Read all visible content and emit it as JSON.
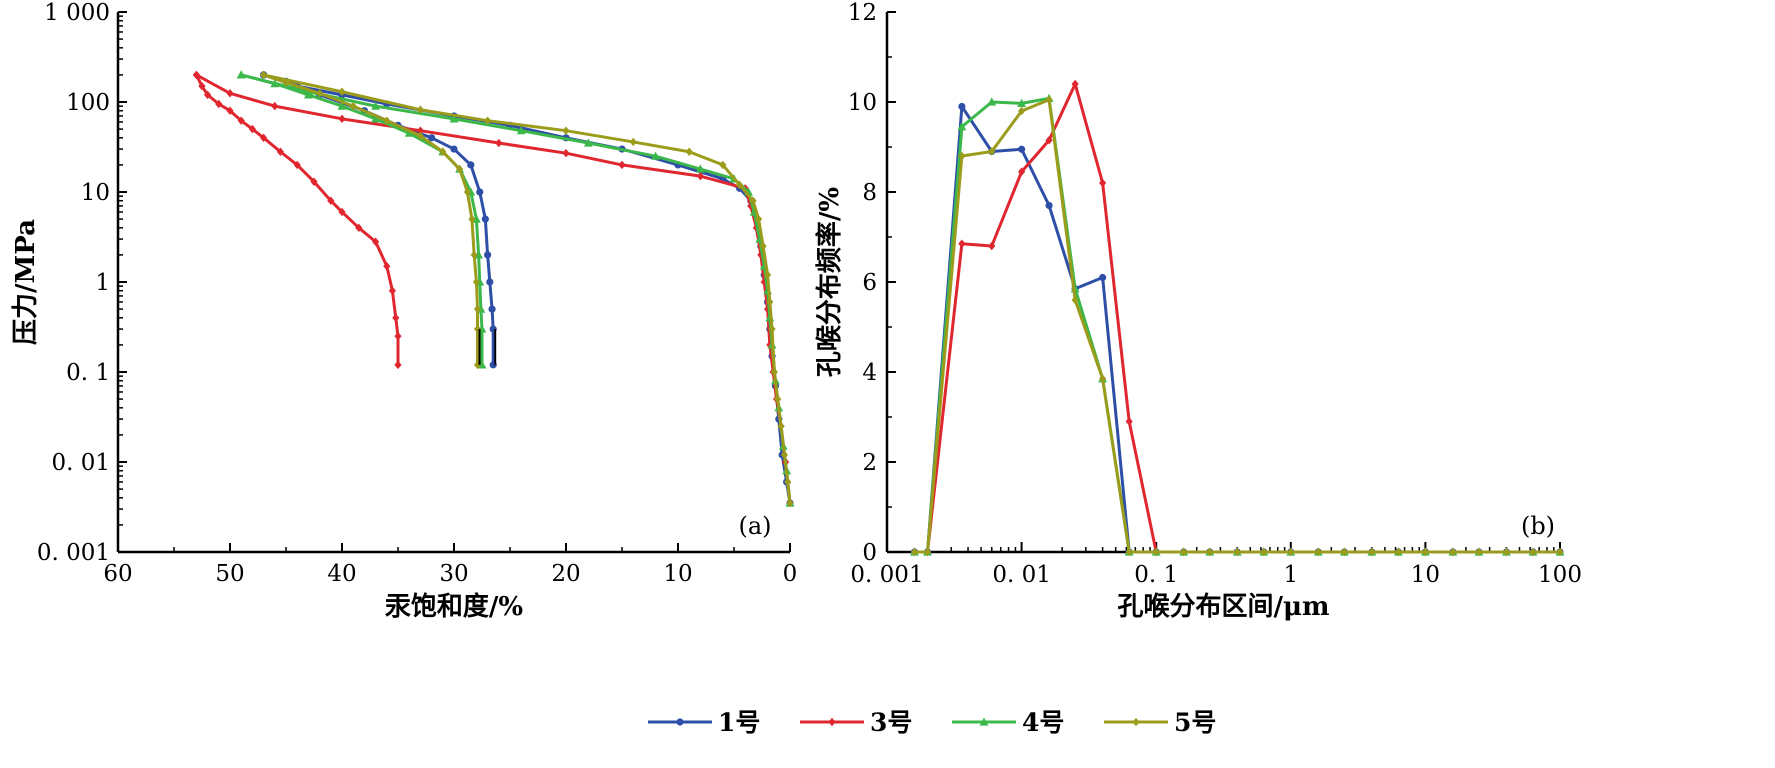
{
  "colors": {
    "1号": "#2e4fa8",
    "3号": "#e0262f",
    "4号": "#3cb84b",
    "5号": "#9c9c1c",
    "axis": "#000000"
  },
  "markers": {
    "1号": "circle",
    "3号": "diamond",
    "4号": "triangle",
    "5号": "diamond"
  },
  "legend": {
    "placement": "bottom-center",
    "items": [
      "1号",
      "3号",
      "4号",
      "5号"
    ]
  },
  "chart_data": [
    {
      "panel_label": "(a)",
      "type": "line",
      "xlabel": "汞饱和度/%",
      "ylabel": "压力/MPa",
      "xlim": [
        60,
        0
      ],
      "x_reversed": true,
      "ylim": [
        0.001,
        1000
      ],
      "y_scale": "log",
      "x_ticks": [
        60,
        50,
        40,
        30,
        20,
        10,
        0
      ],
      "x_tick_labels": [
        "60",
        "50",
        "40",
        "30",
        "20",
        "10",
        "0"
      ],
      "y_ticks": [
        0.001,
        0.01,
        0.1,
        1,
        10,
        100,
        1000
      ],
      "y_tick_labels": [
        "0. 001",
        "0. 01",
        "0. 1",
        "1",
        "10",
        "100",
        "1 000"
      ],
      "grid": false,
      "series": [
        {
          "name": "1号",
          "curve": "injection",
          "points": [
            [
              0,
              0.0035
            ],
            [
              0.3,
              0.006
            ],
            [
              0.7,
              0.012
            ],
            [
              1.0,
              0.03
            ],
            [
              1.3,
              0.07
            ],
            [
              1.6,
              0.15
            ],
            [
              1.8,
              0.3
            ],
            [
              2.0,
              0.6
            ],
            [
              2.3,
              1.2
            ],
            [
              2.6,
              2.5
            ],
            [
              3.0,
              5
            ],
            [
              3.5,
              8
            ],
            [
              4.5,
              11
            ],
            [
              6,
              14
            ],
            [
              10,
              20
            ],
            [
              15,
              30
            ],
            [
              20,
              40
            ],
            [
              25,
              55
            ],
            [
              30,
              70
            ],
            [
              36,
              95
            ],
            [
              40,
              120
            ],
            [
              44,
              150
            ],
            [
              47,
              200
            ]
          ]
        },
        {
          "name": "1号",
          "curve": "withdrawal",
          "points": [
            [
              47,
              200
            ],
            [
              45,
              170
            ],
            [
              42,
              120
            ],
            [
              38,
              80
            ],
            [
              35,
              55
            ],
            [
              32,
              40
            ],
            [
              30,
              30
            ],
            [
              28.5,
              20
            ],
            [
              27.7,
              10
            ],
            [
              27.2,
              5
            ],
            [
              27,
              2
            ],
            [
              26.8,
              1
            ],
            [
              26.6,
              0.5
            ],
            [
              26.5,
              0.3
            ],
            [
              26.5,
              0.12
            ]
          ]
        },
        {
          "name": "3号",
          "curve": "injection",
          "points": [
            [
              0,
              0.0035
            ],
            [
              0.4,
              0.01
            ],
            [
              0.8,
              0.025
            ],
            [
              1.2,
              0.05
            ],
            [
              1.5,
              0.1
            ],
            [
              1.8,
              0.2
            ],
            [
              2.0,
              0.5
            ],
            [
              2.3,
              1
            ],
            [
              2.6,
              2
            ],
            [
              3.0,
              4
            ],
            [
              3.5,
              7
            ],
            [
              4.0,
              11
            ],
            [
              8,
              15
            ],
            [
              15,
              20
            ],
            [
              20,
              27
            ],
            [
              26,
              35
            ],
            [
              33,
              48
            ],
            [
              40,
              65
            ],
            [
              46,
              90
            ],
            [
              50,
              125
            ],
            [
              53,
              200
            ]
          ]
        },
        {
          "name": "3号",
          "curve": "withdrawal",
          "points": [
            [
              53,
              200
            ],
            [
              52.5,
              150
            ],
            [
              52,
              120
            ],
            [
              51,
              95
            ],
            [
              50,
              80
            ],
            [
              49,
              62
            ],
            [
              48,
              50
            ],
            [
              47,
              40
            ],
            [
              45.5,
              28
            ],
            [
              44,
              20
            ],
            [
              42.5,
              13
            ],
            [
              41,
              8
            ],
            [
              40,
              6
            ],
            [
              38.5,
              4
            ],
            [
              37,
              2.8
            ],
            [
              36,
              1.5
            ],
            [
              35.5,
              0.8
            ],
            [
              35.2,
              0.4
            ],
            [
              35,
              0.25
            ],
            [
              35,
              0.12
            ]
          ]
        },
        {
          "name": "4号",
          "curve": "injection",
          "points": [
            [
              0,
              0.0035
            ],
            [
              0.3,
              0.008
            ],
            [
              0.6,
              0.015
            ],
            [
              1.0,
              0.04
            ],
            [
              1.3,
              0.08
            ],
            [
              1.6,
              0.2
            ],
            [
              1.8,
              0.4
            ],
            [
              2.0,
              0.8
            ],
            [
              2.3,
              1.5
            ],
            [
              2.7,
              3
            ],
            [
              3.2,
              6
            ],
            [
              3.7,
              10
            ],
            [
              5,
              14
            ],
            [
              8,
              18
            ],
            [
              12,
              25
            ],
            [
              18,
              35
            ],
            [
              24,
              48
            ],
            [
              30,
              65
            ],
            [
              37,
              90
            ],
            [
              43,
              130
            ],
            [
              49,
              200
            ]
          ]
        },
        {
          "name": "4号",
          "curve": "withdrawal",
          "points": [
            [
              49,
              200
            ],
            [
              46,
              160
            ],
            [
              43,
              120
            ],
            [
              40,
              90
            ],
            [
              37,
              65
            ],
            [
              34,
              45
            ],
            [
              31,
              28
            ],
            [
              29.5,
              18
            ],
            [
              28.5,
              10
            ],
            [
              28,
              5
            ],
            [
              27.8,
              2
            ],
            [
              27.7,
              1
            ],
            [
              27.6,
              0.5
            ],
            [
              27.5,
              0.3
            ],
            [
              27.5,
              0.12
            ]
          ]
        },
        {
          "name": "5号",
          "curve": "injection",
          "points": [
            [
              0,
              0.0035
            ],
            [
              0.2,
              0.006
            ],
            [
              0.5,
              0.012
            ],
            [
              0.8,
              0.025
            ],
            [
              1.1,
              0.05
            ],
            [
              1.4,
              0.1
            ],
            [
              1.6,
              0.3
            ],
            [
              1.8,
              0.6
            ],
            [
              2.0,
              1.2
            ],
            [
              2.4,
              2.5
            ],
            [
              2.8,
              5
            ],
            [
              3.3,
              8
            ],
            [
              4.5,
              12
            ],
            [
              6,
              20
            ],
            [
              9,
              28
            ],
            [
              14,
              36
            ],
            [
              20,
              48
            ],
            [
              27,
              62
            ],
            [
              33,
              82
            ],
            [
              40,
              130
            ],
            [
              47,
              200
            ]
          ]
        },
        {
          "name": "5号",
          "curve": "withdrawal",
          "points": [
            [
              47,
              200
            ],
            [
              45,
              165
            ],
            [
              42,
              125
            ],
            [
              39,
              90
            ],
            [
              36,
              62
            ],
            [
              33,
              42
            ],
            [
              31,
              28
            ],
            [
              29.5,
              18
            ],
            [
              28.8,
              10
            ],
            [
              28.4,
              5
            ],
            [
              28.2,
              2
            ],
            [
              28.0,
              1
            ],
            [
              27.9,
              0.5
            ],
            [
              27.9,
              0.3
            ],
            [
              27.9,
              0.12
            ]
          ]
        }
      ]
    },
    {
      "panel_label": "(b)",
      "type": "line",
      "xlabel": "孔喉分布区间/μm",
      "ylabel": "孔喉分布频率/%",
      "xlim": [
        0.001,
        100
      ],
      "x_scale": "log",
      "ylim": [
        0,
        12
      ],
      "x_ticks": [
        0.001,
        0.01,
        0.1,
        1,
        10,
        100
      ],
      "x_tick_labels": [
        "0. 001",
        "0. 01",
        "0. 1",
        "1",
        "10",
        "100"
      ],
      "y_ticks": [
        0,
        2,
        4,
        6,
        8,
        10,
        12
      ],
      "y_tick_labels": [
        "0",
        "2",
        "4",
        "6",
        "8",
        "10",
        "12"
      ],
      "grid": false,
      "x": [
        0.0016,
        0.002,
        0.0036,
        0.006,
        0.01,
        0.016,
        0.025,
        0.04,
        0.063,
        0.1,
        0.16,
        0.25,
        0.4,
        0.63,
        1,
        1.6,
        2.5,
        4,
        6.3,
        10,
        16,
        25,
        40,
        63,
        100
      ],
      "series": [
        {
          "name": "1号",
          "values": [
            0,
            0,
            9.9,
            8.9,
            8.95,
            7.7,
            5.85,
            6.1,
            0,
            0,
            0,
            0,
            0,
            0,
            0,
            0,
            0,
            0,
            0,
            0,
            0,
            0,
            0,
            0,
            0
          ]
        },
        {
          "name": "3号",
          "values": [
            0,
            0,
            6.85,
            6.8,
            8.45,
            9.15,
            10.4,
            8.2,
            2.9,
            0,
            0,
            0,
            0,
            0,
            0,
            0,
            0,
            0,
            0,
            0,
            0,
            0,
            0,
            0,
            0
          ]
        },
        {
          "name": "4号",
          "values": [
            0,
            0,
            9.45,
            10.0,
            9.97,
            10.08,
            5.85,
            3.85,
            0,
            0,
            0,
            0,
            0,
            0,
            0,
            0,
            0,
            0,
            0,
            0,
            0,
            0,
            0,
            0,
            0
          ]
        },
        {
          "name": "5号",
          "values": [
            0,
            0,
            8.8,
            8.9,
            9.8,
            10.05,
            5.6,
            3.85,
            0,
            0,
            0,
            0,
            0,
            0,
            0,
            0,
            0,
            0,
            0,
            0,
            0,
            0,
            0,
            0,
            0
          ]
        }
      ]
    }
  ]
}
